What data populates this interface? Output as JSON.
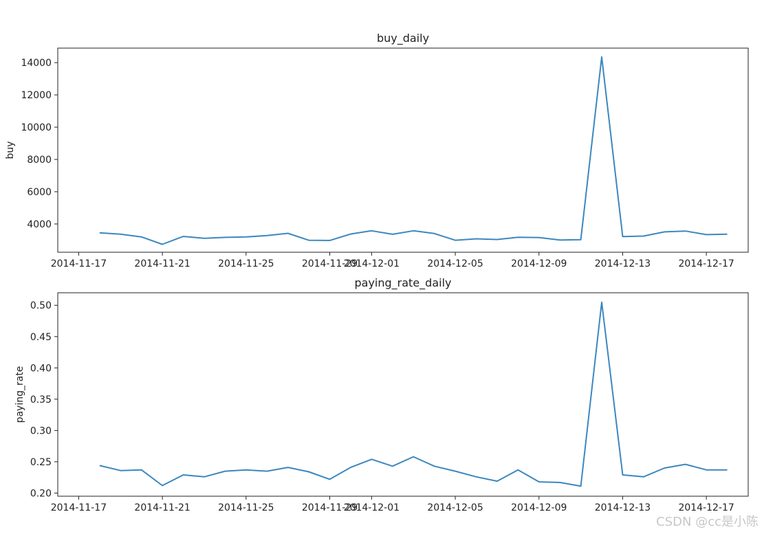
{
  "watermark": "CSDN @cc是小陈",
  "chart_data": [
    {
      "type": "line",
      "title": "buy_daily",
      "xlabel": "",
      "ylabel": "buy",
      "color": "#3b87bf",
      "xlim": [
        "2014-11-16",
        "2014-12-19"
      ],
      "ylim": [
        2250,
        14900
      ],
      "x_ticks": [
        "2014-11-17",
        "2014-11-21",
        "2014-11-25",
        "2014-11-29",
        "2014-12-01",
        "2014-12-05",
        "2014-12-09",
        "2014-12-13",
        "2014-12-17"
      ],
      "y_ticks": [
        4000,
        6000,
        8000,
        10000,
        12000,
        14000
      ],
      "x": [
        "2014-11-18",
        "2014-11-19",
        "2014-11-20",
        "2014-11-21",
        "2014-11-22",
        "2014-11-23",
        "2014-11-24",
        "2014-11-25",
        "2014-11-26",
        "2014-11-27",
        "2014-11-28",
        "2014-11-29",
        "2014-11-30",
        "2014-12-01",
        "2014-12-02",
        "2014-12-03",
        "2014-12-04",
        "2014-12-05",
        "2014-12-06",
        "2014-12-07",
        "2014-12-08",
        "2014-12-09",
        "2014-12-10",
        "2014-12-11",
        "2014-12-12",
        "2014-12-13",
        "2014-12-14",
        "2014-12-15",
        "2014-12-16",
        "2014-12-17",
        "2014-12-18"
      ],
      "values": [
        3450,
        3370,
        3200,
        2740,
        3230,
        3110,
        3170,
        3200,
        3280,
        3420,
        2990,
        2980,
        3380,
        3580,
        3360,
        3580,
        3410,
        2990,
        3080,
        3040,
        3180,
        3160,
        3010,
        3030,
        14350,
        3220,
        3250,
        3510,
        3560,
        3340,
        3370
      ]
    },
    {
      "type": "line",
      "title": "paying_rate_daily",
      "xlabel": "",
      "ylabel": "paying_rate",
      "color": "#3b87bf",
      "xlim": [
        "2014-11-16",
        "2014-12-19"
      ],
      "ylim": [
        0.195,
        0.52
      ],
      "x_ticks": [
        "2014-11-17",
        "2014-11-21",
        "2014-11-25",
        "2014-11-29",
        "2014-12-01",
        "2014-12-05",
        "2014-12-09",
        "2014-12-13",
        "2014-12-17"
      ],
      "y_ticks": [
        "0.20",
        "0.25",
        "0.30",
        "0.35",
        "0.40",
        "0.45",
        "0.50"
      ],
      "x": [
        "2014-11-18",
        "2014-11-19",
        "2014-11-20",
        "2014-11-21",
        "2014-11-22",
        "2014-11-23",
        "2014-11-24",
        "2014-11-25",
        "2014-11-26",
        "2014-11-27",
        "2014-11-28",
        "2014-11-29",
        "2014-11-30",
        "2014-12-01",
        "2014-12-02",
        "2014-12-03",
        "2014-12-04",
        "2014-12-05",
        "2014-12-06",
        "2014-12-07",
        "2014-12-08",
        "2014-12-09",
        "2014-12-10",
        "2014-12-11",
        "2014-12-12",
        "2014-12-13",
        "2014-12-14",
        "2014-12-15",
        "2014-12-16",
        "2014-12-17",
        "2014-12-18"
      ],
      "values": [
        0.244,
        0.236,
        0.237,
        0.212,
        0.229,
        0.226,
        0.235,
        0.237,
        0.235,
        0.241,
        0.234,
        0.222,
        0.241,
        0.254,
        0.243,
        0.258,
        0.243,
        0.235,
        0.226,
        0.219,
        0.237,
        0.218,
        0.217,
        0.211,
        0.505,
        0.229,
        0.226,
        0.24,
        0.246,
        0.237,
        0.237
      ]
    }
  ]
}
